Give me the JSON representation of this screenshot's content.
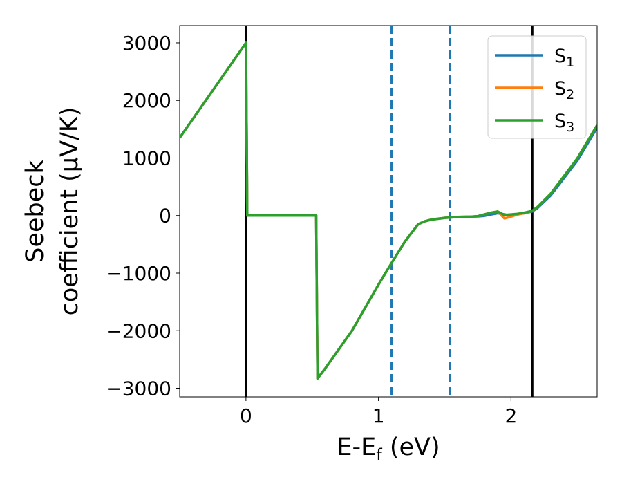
{
  "chart_data": {
    "type": "line",
    "xlabel": {
      "main": "E-E",
      "sub": "f",
      "tail": " (eV)"
    },
    "ylabel": {
      "line1": "Seebeck",
      "line2": "coefficient  (μV/K)"
    },
    "xlim": [
      -0.5,
      2.65
    ],
    "ylim": [
      -3150,
      3300
    ],
    "xticks": [
      {
        "value": 0,
        "label": "0"
      },
      {
        "value": 1,
        "label": "1"
      },
      {
        "value": 2,
        "label": "2"
      }
    ],
    "yticks": [
      {
        "value": -3000,
        "label": "−3000"
      },
      {
        "value": -2000,
        "label": "−2000"
      },
      {
        "value": -1000,
        "label": "−1000"
      },
      {
        "value": 0,
        "label": "0"
      },
      {
        "value": 1000,
        "label": "1000"
      },
      {
        "value": 2000,
        "label": "2000"
      },
      {
        "value": 3000,
        "label": "3000"
      }
    ],
    "vlines": [
      {
        "x": 0.0,
        "style": "solid",
        "color": "#000000"
      },
      {
        "x": 2.16,
        "style": "solid",
        "color": "#000000"
      },
      {
        "x": 1.1,
        "style": "dashed",
        "color": "#1f77b4"
      },
      {
        "x": 1.54,
        "style": "dashed",
        "color": "#1f77b4"
      }
    ],
    "legend": {
      "placement": "top-right"
    },
    "series": [
      {
        "name": "S",
        "sub": "1",
        "color": "#1f77b4",
        "x": [
          -0.5,
          0.0,
          0.01,
          0.53,
          0.54,
          0.6,
          0.8,
          1.0,
          1.1,
          1.2,
          1.3,
          1.35,
          1.4,
          1.5,
          1.6,
          1.7,
          1.75,
          1.8,
          1.85,
          1.9,
          1.95,
          2.0,
          2.05,
          2.1,
          2.16,
          2.2,
          2.3,
          2.5,
          2.65
        ],
        "y": [
          1350,
          3000,
          0,
          0,
          -2830,
          -2650,
          -2000,
          -1200,
          -820,
          -450,
          -150,
          -100,
          -70,
          -40,
          -25,
          -20,
          -15,
          -5,
          20,
          40,
          20,
          0,
          20,
          40,
          70,
          130,
          350,
          950,
          1530
        ]
      },
      {
        "name": "S",
        "sub": "2",
        "color": "#ff7f0e",
        "x": [
          -0.5,
          0.0,
          0.01,
          0.53,
          0.54,
          0.6,
          0.8,
          1.0,
          1.1,
          1.2,
          1.3,
          1.35,
          1.4,
          1.5,
          1.6,
          1.7,
          1.75,
          1.8,
          1.85,
          1.9,
          1.95,
          2.0,
          2.05,
          2.1,
          2.16,
          2.2,
          2.3,
          2.5,
          2.65
        ],
        "y": [
          1350,
          3000,
          0,
          0,
          -2830,
          -2650,
          -2000,
          -1200,
          -820,
          -450,
          -150,
          -100,
          -70,
          -40,
          -25,
          -20,
          -10,
          20,
          50,
          70,
          -50,
          -20,
          20,
          40,
          80,
          150,
          380,
          990,
          1570
        ]
      },
      {
        "name": "S",
        "sub": "3",
        "color": "#2ca02c",
        "x": [
          -0.5,
          0.0,
          0.01,
          0.53,
          0.54,
          0.6,
          0.8,
          1.0,
          1.1,
          1.2,
          1.3,
          1.35,
          1.4,
          1.5,
          1.6,
          1.7,
          1.75,
          1.8,
          1.85,
          1.9,
          1.95,
          2.0,
          2.05,
          2.1,
          2.16,
          2.2,
          2.3,
          2.5,
          2.65
        ],
        "y": [
          1350,
          3000,
          0,
          0,
          -2830,
          -2650,
          -2000,
          -1200,
          -820,
          -450,
          -150,
          -100,
          -70,
          -40,
          -25,
          -20,
          -10,
          20,
          50,
          70,
          10,
          20,
          30,
          50,
          80,
          150,
          380,
          990,
          1570
        ]
      }
    ]
  }
}
